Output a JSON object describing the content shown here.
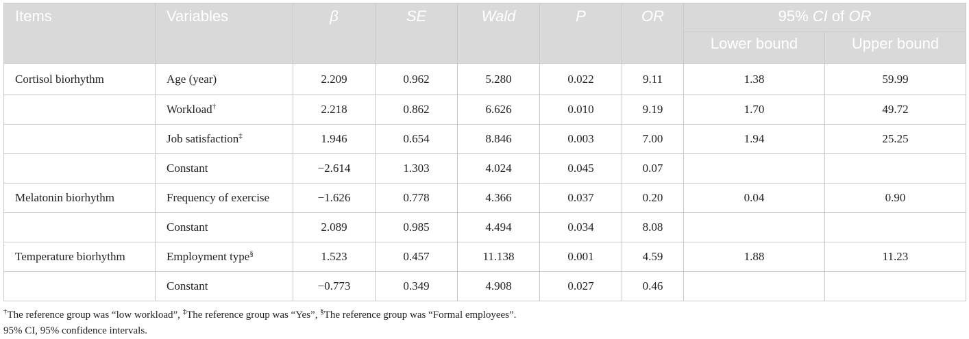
{
  "header": {
    "items": "Items",
    "variables": "Variables",
    "beta": "β",
    "se": "SE",
    "wald": "Wald",
    "p": "P",
    "or": "OR",
    "ci_prefix": "95% ",
    "ci_italic": "CI",
    "ci_mid": " of ",
    "ci_or": "OR",
    "lower": "Lower bound",
    "upper": "Upper bound"
  },
  "rows": [
    {
      "item": "Cortisol biorhythm",
      "variable": "Age (year)",
      "sup": "",
      "beta": "2.209",
      "se": "0.962",
      "wald": "5.280",
      "p": "0.022",
      "or": "9.11",
      "lower": "1.38",
      "upper": "59.99"
    },
    {
      "item": "",
      "variable": "Workload",
      "sup": "†",
      "beta": "2.218",
      "se": "0.862",
      "wald": "6.626",
      "p": "0.010",
      "or": "9.19",
      "lower": "1.70",
      "upper": "49.72"
    },
    {
      "item": "",
      "variable": "Job satisfaction",
      "sup": "‡",
      "beta": "1.946",
      "se": "0.654",
      "wald": "8.846",
      "p": "0.003",
      "or": "7.00",
      "lower": "1.94",
      "upper": "25.25"
    },
    {
      "item": "",
      "variable": "Constant",
      "sup": "",
      "beta": "−2.614",
      "se": "1.303",
      "wald": "4.024",
      "p": "0.045",
      "or": "0.07",
      "lower": "",
      "upper": ""
    },
    {
      "item": "Melatonin biorhythm",
      "variable": "Frequency of exercise",
      "sup": "",
      "beta": "−1.626",
      "se": "0.778",
      "wald": "4.366",
      "p": "0.037",
      "or": "0.20",
      "lower": "0.04",
      "upper": "0.90"
    },
    {
      "item": "",
      "variable": "Constant",
      "sup": "",
      "beta": "2.089",
      "se": "0.985",
      "wald": "4.494",
      "p": "0.034",
      "or": "8.08",
      "lower": "",
      "upper": ""
    },
    {
      "item": "Temperature biorhythm",
      "variable": "Employment type",
      "sup": "§",
      "beta": "1.523",
      "se": "0.457",
      "wald": "11.138",
      "p": "0.001",
      "or": "4.59",
      "lower": "1.88",
      "upper": "11.23"
    },
    {
      "item": "",
      "variable": "Constant",
      "sup": "",
      "beta": "−0.773",
      "se": "0.349",
      "wald": "4.908",
      "p": "0.027",
      "or": "0.46",
      "lower": "",
      "upper": ""
    }
  ],
  "footnotes": {
    "sym1": "†",
    "text1": "The reference group was “low workload”, ",
    "sym2": "‡",
    "text2": "The reference group was “Yes”, ",
    "sym3": "§",
    "text3": "The reference group was “Formal employees”.",
    "line2": "95% CI, 95% confidence intervals."
  }
}
